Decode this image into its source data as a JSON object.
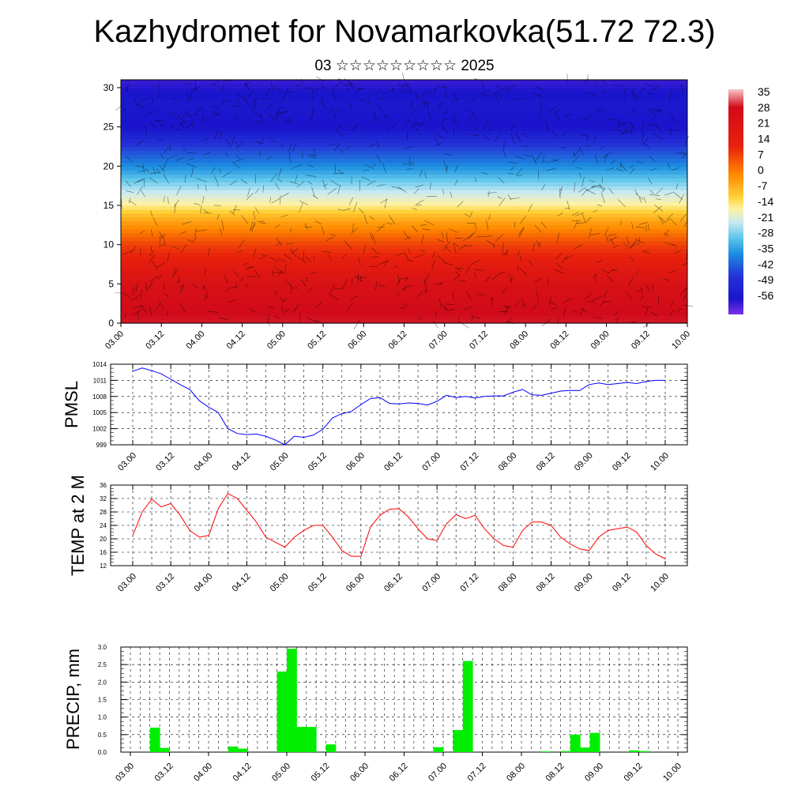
{
  "title": "Kazhydromet for Novamarkovka(51.72 72.3)",
  "subtitle": "03 ☆☆☆☆☆☆☆☆☆ 2025",
  "chart_data": [
    {
      "type": "heatmap",
      "title": "",
      "xlabel": "",
      "ylabel": "",
      "x_ticks": [
        "03.00",
        "03.12",
        "04.00",
        "04.12",
        "05.00",
        "05.12",
        "06.00",
        "06.12",
        "07.00",
        "07.12",
        "08.00",
        "08.12",
        "09.00",
        "09.12",
        "10.00"
      ],
      "y_ticks": [
        "0",
        "5",
        "10",
        "15",
        "20",
        "25",
        "30"
      ],
      "ylim": [
        0,
        31
      ],
      "colorbar": {
        "labels": [
          "35",
          "28",
          "21",
          "14",
          "7",
          "0",
          "-7",
          "-14",
          "-21",
          "-28",
          "-35",
          "-42",
          "-49",
          "-56"
        ],
        "range": [
          -60,
          38
        ]
      },
      "overlay": "wind barbs",
      "temperature_profile": [
        {
          "level": 0,
          "value": 26
        },
        {
          "level": 5,
          "value": 22
        },
        {
          "level": 10,
          "value": 12
        },
        {
          "level": 13,
          "value": 2
        },
        {
          "level": 15,
          "value": -9
        },
        {
          "level": 18,
          "value": -28
        },
        {
          "level": 20,
          "value": -40
        },
        {
          "level": 23,
          "value": -51
        },
        {
          "level": 25,
          "value": -57
        },
        {
          "level": 28,
          "value": -56
        },
        {
          "level": 31,
          "value": -58
        }
      ]
    },
    {
      "type": "line",
      "ylabel": "PMSL",
      "ylim": [
        999,
        1014
      ],
      "y_ticks": [
        "999",
        "1002",
        "1005",
        "1008",
        "1011",
        "1014"
      ],
      "x_ticks": [
        "03.00",
        "03.12",
        "04.00",
        "04.12",
        "05.00",
        "05.12",
        "06.00",
        "06.12",
        "07.00",
        "07.12",
        "08.00",
        "08.12",
        "09.00",
        "09.12",
        "10.00"
      ],
      "color": "#0000ff",
      "series": [
        {
          "x": [
            0,
            0.25,
            0.5,
            0.75,
            1,
            1.25,
            1.5,
            1.75,
            2,
            2.25,
            2.5,
            2.75,
            3,
            3.25,
            3.5,
            3.75,
            4,
            4.25,
            4.5,
            4.75,
            5,
            5.25,
            5.5,
            5.75,
            6,
            6.25,
            6.5,
            6.75,
            7,
            7.25,
            7.5,
            7.75,
            8,
            8.25,
            8.5,
            8.75,
            9,
            9.25,
            9.5,
            9.75,
            10,
            10.25,
            10.5,
            10.75,
            11,
            11.25,
            11.5,
            11.75,
            12,
            12.25,
            12.5,
            12.75,
            13,
            13.25,
            13.5,
            13.75,
            14
          ],
          "values": [
            1012.7,
            1013.3,
            1012.8,
            1012.2,
            1011.2,
            1010.2,
            1009.3,
            1007.2,
            1006.0,
            1005.0,
            1002.0,
            1001.1,
            1000.9,
            1001.0,
            1000.6,
            999.9,
            999.0,
            1000.6,
            1000.4,
            1000.8,
            1001.9,
            1004.0,
            1004.8,
            1005.2,
            1006.5,
            1007.6,
            1007.8,
            1006.7,
            1006.6,
            1006.8,
            1006.7,
            1006.4,
            1007.1,
            1008.2,
            1007.8,
            1008.0,
            1007.7,
            1008.0,
            1008.1,
            1008.1,
            1008.8,
            1009.3,
            1008.3,
            1008.2,
            1008.6,
            1009.0,
            1009.1,
            1009.1,
            1010.2,
            1010.5,
            1010.2,
            1010.4,
            1010.6,
            1010.4,
            1010.8,
            1011.0,
            1011.0
          ]
        }
      ]
    },
    {
      "type": "line",
      "ylabel": "TEMP at 2 M",
      "ylim": [
        12,
        36
      ],
      "y_ticks": [
        "12",
        "16",
        "20",
        "24",
        "28",
        "32",
        "36"
      ],
      "x_ticks": [
        "03.00",
        "03.12",
        "04.00",
        "04.12",
        "05.00",
        "05.12",
        "06.00",
        "06.12",
        "07.00",
        "07.12",
        "08.00",
        "08.12",
        "09.00",
        "09.12",
        "10.00"
      ],
      "color": "#ff0000",
      "series": [
        {
          "x": [
            0,
            0.25,
            0.5,
            0.75,
            1,
            1.25,
            1.5,
            1.75,
            2,
            2.25,
            2.5,
            2.75,
            3,
            3.25,
            3.5,
            3.75,
            4,
            4.25,
            4.5,
            4.75,
            5,
            5.25,
            5.5,
            5.75,
            6,
            6.25,
            6.5,
            6.75,
            7,
            7.25,
            7.5,
            7.75,
            8,
            8.25,
            8.5,
            8.75,
            9,
            9.25,
            9.5,
            9.75,
            10,
            10.25,
            10.5,
            10.75,
            11,
            11.25,
            11.5,
            11.75,
            12,
            12.25,
            12.5,
            12.75,
            13,
            13.25,
            13.5,
            13.75,
            14
          ],
          "values": [
            21.0,
            28.0,
            31.8,
            29.5,
            30.5,
            27.0,
            22.5,
            20.5,
            21.0,
            29.0,
            33.5,
            32.0,
            28.5,
            25.0,
            20.5,
            19.0,
            17.5,
            20.5,
            22.5,
            24.0,
            24.0,
            20.5,
            16.5,
            14.8,
            14.8,
            23.5,
            27.0,
            28.8,
            29.0,
            26.5,
            23.0,
            20.0,
            19.5,
            24.5,
            27.2,
            26.0,
            27.0,
            23.0,
            20.0,
            18.0,
            17.5,
            22.5,
            25.0,
            25.0,
            24.0,
            20.5,
            18.5,
            17.0,
            16.5,
            20.5,
            22.5,
            23.0,
            23.5,
            22.0,
            18.0,
            15.5,
            14.0
          ]
        }
      ]
    },
    {
      "type": "bar",
      "ylabel": "PRECIP, mm",
      "ylim": [
        0,
        3.0
      ],
      "y_ticks": [
        "0.0",
        "0.5",
        "1.0",
        "1.5",
        "2.0",
        "2.5",
        "3.0"
      ],
      "x_ticks": [
        "03.00",
        "03.12",
        "04.00",
        "04.12",
        "05.00",
        "05.12",
        "06.00",
        "06.12",
        "07.00",
        "07.12",
        "08.00",
        "08.12",
        "09.00",
        "09.12",
        "10.00"
      ],
      "color": "#00ee00",
      "x": [
        0.625,
        0.875,
        2.625,
        2.875,
        3.875,
        4.125,
        4.375,
        4.625,
        5.125,
        7.875,
        8.375,
        8.625,
        10.625,
        11.125,
        11.375,
        11.625,
        11.875,
        12.875,
        13.125
      ],
      "values": [
        0.7,
        0.12,
        0.16,
        0.1,
        2.3,
        2.95,
        0.72,
        0.72,
        0.22,
        0.14,
        0.63,
        2.6,
        0.02,
        0.03,
        0.5,
        0.13,
        0.55,
        0.05,
        0.03
      ]
    }
  ]
}
